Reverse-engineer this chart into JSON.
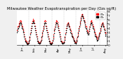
{
  "title": "Milwaukee Weather Evapotranspiration per Day (Ozs sq/ft)",
  "title_fontsize": 3.8,
  "background_color": "#f0f0f0",
  "plot_bg_color": "#ffffff",
  "ylim": [
    0,
    8
  ],
  "ytick_labels": [
    "0",
    "1",
    "2",
    "3",
    "4",
    "5",
    "6",
    "7",
    "8"
  ],
  "ytick_vals": [
    0,
    1,
    2,
    3,
    4,
    5,
    6,
    7,
    8
  ],
  "ytick_fontsize": 3.0,
  "xtick_fontsize": 2.8,
  "grid_color": "#aaaaaa",
  "dot_color_red": "#ff0000",
  "dot_color_black": "#000000",
  "dot_size": 1.2,
  "legend_label_red": "ETo",
  "legend_label_black": "ETc",
  "vline_positions": [
    28,
    56,
    84,
    112,
    140,
    168,
    196
  ],
  "n_points": 210,
  "x_data": [
    1,
    2,
    3,
    4,
    5,
    6,
    7,
    8,
    9,
    10,
    11,
    12,
    13,
    14,
    15,
    16,
    17,
    18,
    19,
    20,
    21,
    22,
    23,
    24,
    25,
    26,
    27,
    28,
    29,
    30,
    31,
    32,
    33,
    34,
    35,
    36,
    37,
    38,
    39,
    40,
    41,
    42,
    43,
    44,
    45,
    46,
    47,
    48,
    49,
    50,
    51,
    52,
    53,
    54,
    55,
    56,
    57,
    58,
    59,
    60,
    61,
    62,
    63,
    64,
    65,
    66,
    67,
    68,
    69,
    70,
    71,
    72,
    73,
    74,
    75,
    76,
    77,
    78,
    79,
    80,
    81,
    82,
    83,
    84,
    85,
    86,
    87,
    88,
    89,
    90,
    91,
    92,
    93,
    94,
    95,
    96,
    97,
    98,
    99,
    100,
    101,
    102,
    103,
    104,
    105,
    106,
    107,
    108,
    109,
    110,
    111,
    112,
    113,
    114,
    115,
    116,
    117,
    118,
    119,
    120,
    121,
    122,
    123,
    124,
    125,
    126,
    127,
    128,
    129,
    130,
    131,
    132,
    133,
    134,
    135,
    136,
    137,
    138,
    139,
    140,
    141,
    142,
    143,
    144,
    145,
    146,
    147,
    148,
    149,
    150,
    151,
    152,
    153,
    154,
    155,
    156,
    157,
    158,
    159,
    160,
    161,
    162,
    163,
    164,
    165,
    166,
    167,
    168,
    169,
    170,
    171,
    172,
    173,
    174,
    175,
    176,
    177,
    178,
    179,
    180,
    181,
    182,
    183,
    184,
    185,
    186,
    187,
    188,
    189,
    190,
    191,
    192,
    193,
    194,
    195,
    196,
    197,
    198,
    199,
    200,
    201,
    202,
    203,
    204,
    205,
    206,
    207,
    208,
    209,
    210
  ],
  "y_red": [
    3.5,
    3.8,
    4.2,
    4.5,
    4.8,
    5.0,
    5.2,
    5.5,
    5.8,
    5.5,
    5.2,
    4.8,
    4.5,
    4.2,
    3.8,
    3.5,
    3.0,
    2.5,
    2.0,
    1.5,
    1.2,
    1.0,
    0.8,
    0.5,
    0.4,
    0.3,
    0.4,
    0.5,
    1.0,
    1.5,
    2.0,
    2.8,
    3.5,
    4.0,
    4.5,
    5.0,
    5.5,
    5.8,
    6.0,
    5.8,
    5.5,
    5.0,
    4.5,
    4.0,
    3.5,
    3.0,
    2.5,
    2.0,
    1.5,
    1.0,
    0.8,
    0.6,
    0.5,
    0.4,
    0.5,
    0.6,
    1.0,
    1.5,
    2.0,
    2.5,
    3.0,
    3.5,
    4.0,
    4.5,
    5.0,
    5.5,
    5.8,
    5.5,
    5.0,
    4.5,
    4.0,
    3.5,
    3.0,
    2.5,
    2.0,
    1.5,
    1.0,
    0.8,
    0.5,
    0.4,
    0.3,
    0.4,
    0.5,
    0.6,
    1.2,
    1.8,
    2.5,
    3.2,
    3.8,
    4.2,
    4.8,
    5.2,
    5.5,
    5.8,
    5.5,
    5.2,
    4.8,
    4.5,
    4.0,
    3.5,
    3.0,
    2.5,
    2.0,
    1.5,
    1.0,
    0.8,
    0.6,
    0.5,
    0.4,
    0.5,
    0.6,
    0.8,
    1.5,
    2.0,
    2.8,
    3.5,
    4.0,
    4.5,
    4.8,
    5.0,
    5.2,
    5.0,
    4.8,
    4.5,
    4.2,
    3.8,
    3.5,
    3.2,
    2.8,
    2.5,
    2.2,
    2.0,
    1.8,
    1.5,
    1.2,
    1.0,
    0.8,
    0.6,
    0.5,
    0.6,
    1.0,
    1.5,
    2.0,
    2.5,
    3.0,
    3.5,
    4.0,
    4.5,
    5.0,
    5.5,
    6.0,
    6.5,
    7.0,
    7.2,
    7.0,
    6.8,
    6.5,
    6.2,
    5.8,
    5.5,
    5.2,
    4.8,
    4.5,
    4.2,
    3.8,
    3.5,
    3.2,
    3.0,
    2.8,
    3.2,
    3.8,
    4.2,
    4.8,
    5.2,
    5.5,
    5.8,
    5.5,
    5.2,
    4.8,
    4.5,
    4.2,
    3.8,
    3.5,
    3.0,
    2.8,
    2.5,
    2.2,
    2.0,
    1.8,
    1.5,
    1.5,
    1.8,
    2.2,
    2.5,
    2.8,
    3.0,
    3.5,
    4.0,
    4.5,
    4.8,
    5.0,
    5.2,
    5.0,
    4.8,
    4.5,
    4.2,
    3.8,
    3.5,
    3.0,
    2.8,
    2.5,
    2.2,
    2.0,
    1.8,
    1.5,
    1.2,
    1.0,
    0.8,
    0.6,
    0.5,
    0.4,
    0.3
  ],
  "y_black": [
    3.0,
    3.2,
    3.8,
    4.0,
    4.2,
    4.5,
    4.8,
    5.0,
    5.2,
    5.0,
    4.8,
    4.2,
    4.0,
    3.8,
    3.2,
    3.0,
    2.5,
    2.0,
    1.5,
    1.0,
    0.8,
    0.6,
    0.5,
    0.3,
    0.2,
    0.2,
    0.3,
    0.4,
    0.8,
    1.2,
    1.8,
    2.5,
    3.0,
    3.5,
    4.0,
    4.5,
    5.0,
    5.2,
    5.5,
    5.2,
    5.0,
    4.5,
    4.0,
    3.5,
    3.0,
    2.5,
    2.0,
    1.5,
    1.0,
    0.8,
    0.5,
    0.4,
    0.3,
    0.3,
    0.4,
    0.5,
    0.8,
    1.2,
    1.8,
    2.2,
    2.8,
    3.2,
    3.8,
    4.2,
    4.8,
    5.0,
    5.2,
    5.0,
    4.5,
    4.0,
    3.5,
    3.0,
    2.5,
    2.0,
    1.5,
    1.0,
    0.8,
    0.5,
    0.3,
    0.2,
    0.2,
    0.3,
    0.4,
    0.5,
    1.0,
    1.5,
    2.2,
    2.8,
    3.5,
    3.8,
    4.2,
    4.8,
    5.0,
    5.2,
    5.0,
    4.8,
    4.2,
    4.0,
    3.5,
    3.0,
    2.5,
    2.0,
    1.5,
    1.0,
    0.8,
    0.5,
    0.4,
    0.3,
    0.3,
    0.4,
    0.5,
    0.6,
    1.2,
    1.8,
    2.5,
    3.0,
    3.5,
    4.0,
    4.5,
    4.8,
    5.0,
    4.8,
    4.5,
    4.2,
    3.8,
    3.5,
    3.0,
    2.8,
    2.5,
    2.2,
    2.0,
    1.8,
    1.5,
    1.2,
    1.0,
    0.8,
    0.5,
    0.4,
    0.3,
    0.4,
    0.8,
    1.2,
    1.8,
    2.2,
    2.8,
    3.2,
    3.8,
    4.2,
    4.8,
    5.2,
    5.8,
    6.2,
    6.8,
    7.0,
    6.8,
    6.5,
    6.2,
    5.8,
    5.5,
    5.2,
    4.8,
    4.2,
    4.0,
    3.8,
    3.2,
    3.0,
    2.8,
    2.5,
    2.5,
    2.8,
    3.2,
    3.8,
    4.2,
    4.8,
    5.0,
    5.2,
    5.0,
    4.8,
    4.2,
    4.0,
    3.8,
    3.2,
    3.0,
    2.5,
    2.2,
    2.0,
    1.8,
    1.5,
    1.2,
    1.0,
    1.2,
    1.5,
    1.8,
    2.2,
    2.5,
    2.8,
    3.2,
    3.8,
    4.2,
    4.5,
    4.8,
    5.0,
    4.8,
    4.5,
    4.2,
    3.8,
    3.5,
    3.0,
    2.5,
    2.2,
    2.0,
    1.8,
    1.5,
    1.2,
    1.0,
    0.8,
    0.5,
    0.4,
    0.3,
    0.2,
    0.2,
    0.2
  ],
  "xtick_positions": [
    14,
    42,
    70,
    98,
    126,
    154,
    182,
    210
  ],
  "xtick_labels": [
    "Jan",
    "Feb",
    "Mar",
    "Apr",
    "May",
    "Jun",
    "Jul",
    "Aug"
  ]
}
